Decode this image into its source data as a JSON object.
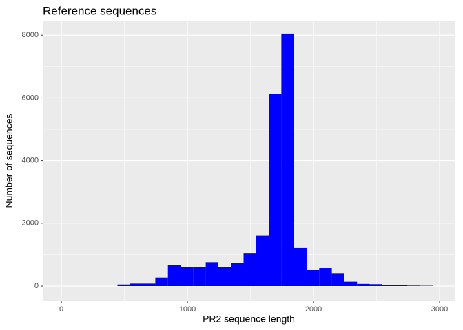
{
  "chart_data": {
    "type": "histogram",
    "title": "Reference sequences",
    "x_label": "PR2 sequence length",
    "y_label": "Number of sequences",
    "bins": [
      445,
      545,
      645,
      745,
      845,
      945,
      1045,
      1145,
      1245,
      1345,
      1445,
      1545,
      1645,
      1745,
      1845,
      1945,
      2045,
      2145,
      2245,
      2345,
      2445,
      2545,
      2645,
      2745,
      2845,
      2945
    ],
    "counts": [
      50,
      80,
      80,
      270,
      680,
      610,
      610,
      760,
      610,
      740,
      1050,
      1610,
      6130,
      8050,
      1230,
      510,
      570,
      410,
      140,
      70,
      60,
      30,
      30,
      15,
      10
    ],
    "color": "#0000ff",
    "xlim": [
      -148,
      3120
    ],
    "xticks": [
      0,
      1000,
      2000,
      3000
    ],
    "x_minor_ticks": [
      500,
      1500,
      2500
    ],
    "ylim": [
      -482,
      8465
    ],
    "yticks": [
      0,
      2000,
      4000,
      6000,
      8000
    ],
    "y_minor_ticks": [
      1000,
      3000,
      5000,
      7000
    ],
    "grid": true
  }
}
